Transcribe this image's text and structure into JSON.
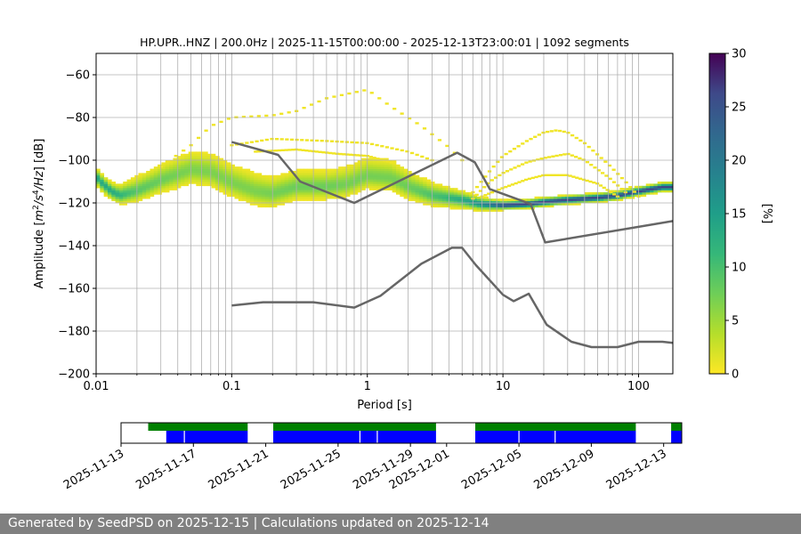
{
  "chart_data": [
    {
      "type": "heatmap",
      "title": "HP.UPR..HNZ | 200.0Hz | 2025-11-15T00:00:00 - 2025-12-13T23:00:01 | 1092 segments",
      "xlabel": "Period [s]",
      "ylabel": "Amplitude [m^2/s^4/Hz] [dB]",
      "x_scale": "log",
      "xlim": [
        0.01,
        179
      ],
      "ylim": [
        -200,
        -50
      ],
      "x_ticks": [
        "0.01",
        "0.1",
        "1",
        "10",
        "100"
      ],
      "y_ticks": [
        "−200",
        "−180",
        "−160",
        "−140",
        "−120",
        "−100",
        "−80",
        "−60"
      ],
      "grid": true,
      "colorbar": {
        "label": "[%]",
        "range": [
          0,
          30
        ],
        "ticks": [
          "0",
          "5",
          "10",
          "15",
          "20",
          "25",
          "30"
        ],
        "colormap": "viridis_r"
      },
      "mode_band": {
        "period": [
          0.01,
          0.011,
          0.013,
          0.015,
          0.02,
          0.03,
          0.05,
          0.07,
          0.1,
          0.15,
          0.2,
          0.3,
          0.5,
          0.7,
          1.0,
          1.5,
          2.0,
          3.0,
          5.0,
          7.0,
          10,
          15,
          20,
          30,
          50,
          70,
          100,
          150,
          179
        ],
        "mode_db": [
          -108,
          -111,
          -115,
          -117,
          -115,
          -110,
          -105,
          -106,
          -111,
          -115,
          -116,
          -113,
          -113,
          -112,
          -108,
          -109,
          -113,
          -117,
          -119,
          -121,
          -121.5,
          -121,
          -120,
          -119,
          -118,
          -117,
          -115,
          -113,
          -113
        ],
        "spread_upper_db": [
          4,
          4,
          4,
          5,
          7,
          8,
          9,
          9,
          9,
          9,
          8,
          8,
          8,
          9,
          9,
          9,
          8,
          6,
          4,
          3,
          2,
          2,
          2,
          2,
          2,
          2,
          2,
          2,
          2
        ],
        "spread_lower_db": [
          4,
          4,
          4,
          4,
          5,
          6,
          7,
          7,
          7,
          7,
          7,
          6,
          6,
          6,
          6,
          6,
          6,
          5,
          4,
          3,
          2,
          2,
          2,
          2,
          2,
          2,
          2,
          2,
          2
        ]
      },
      "upper_excursions": [
        {
          "period": [
            0.03,
            0.05,
            0.07,
            0.1,
            0.2,
            0.3,
            0.5,
            1.0,
            1.5,
            2.5,
            4.0,
            5.0
          ],
          "db": [
            -103,
            -93,
            -84,
            -80,
            -79,
            -77,
            -71,
            -67,
            -75,
            -84,
            -94,
            -100
          ]
        },
        {
          "period": [
            0.1,
            0.2,
            0.5,
            1.0,
            2.0,
            3.0
          ],
          "db": [
            -93,
            -90,
            -91,
            -92,
            -96,
            -100
          ]
        },
        {
          "period": [
            0.15,
            0.3,
            0.6,
            1.0,
            1.5
          ],
          "db": [
            -96,
            -95,
            -97,
            -98,
            -101
          ]
        },
        {
          "period": [
            6,
            8,
            10,
            15,
            20,
            25,
            30,
            40,
            60,
            80,
            100
          ],
          "db": [
            -115,
            -105,
            -98,
            -91,
            -87,
            -86,
            -87,
            -92,
            -102,
            -110,
            -117
          ]
        },
        {
          "period": [
            6,
            8,
            10,
            15,
            20,
            30,
            40,
            60,
            80
          ],
          "db": [
            -118,
            -110,
            -106,
            -101,
            -99,
            -97,
            -100,
            -108,
            -115
          ]
        },
        {
          "period": [
            7,
            10,
            15,
            20,
            30,
            50,
            70
          ],
          "db": [
            -117,
            -113,
            -109,
            -107,
            -107,
            -111,
            -117
          ]
        }
      ],
      "series": [
        {
          "period": [
            0.1,
            0.22,
            0.32,
            0.8,
            4.6,
            6.2,
            8.0,
            16,
            20.5,
            179
          ],
          "db": [
            -91.5,
            -97.5,
            -110,
            -120,
            -96.5,
            -101,
            -113.5,
            -120.5,
            -138.5,
            -128.5
          ]
        },
        {
          "period": [
            0.1,
            0.17,
            0.4,
            0.8,
            1.25,
            2.5,
            4.2,
            5.0,
            6.3,
            10,
            12,
            15.5,
            21,
            32,
            45,
            70,
            100,
            150,
            179
          ],
          "db": [
            -168,
            -166.5,
            -166.5,
            -169,
            -163.5,
            -148.5,
            -141,
            -141,
            -149,
            -163,
            -166,
            -162.5,
            -177,
            -185,
            -187.5,
            -187.5,
            -185,
            -185,
            -185.5
          ]
        }
      ],
      "series_color": "#666666"
    },
    {
      "type": "timeline",
      "x_ticks": [
        "2025-11-13",
        "2025-11-17",
        "2025-11-21",
        "2025-11-25",
        "2025-11-29",
        "2025-12-01",
        "2025-12-05",
        "2025-12-09",
        "2025-12-13"
      ],
      "xlim": [
        "2025-11-13",
        "2025-12-14"
      ],
      "top_bars": [
        {
          "start": "2025-11-14T12:00",
          "end": "2025-11-20T00:00"
        },
        {
          "start": "2025-11-21T10:00",
          "end": "2025-11-30T10:00"
        },
        {
          "start": "2025-12-02T14:00",
          "end": "2025-12-11T11:00"
        },
        {
          "start": "2025-12-13T10:00",
          "end": "2025-12-14T10:00"
        }
      ],
      "bottom_bars": [
        {
          "start": "2025-11-15T12:00",
          "end": "2025-11-20T00:00"
        },
        {
          "start": "2025-11-21T10:00",
          "end": "2025-11-30T10:00"
        },
        {
          "start": "2025-12-02T14:00",
          "end": "2025-12-11T11:00"
        },
        {
          "start": "2025-12-13T10:00",
          "end": "2025-12-14T10:00"
        }
      ],
      "gaps": [
        "2025-11-16T12:00",
        "2025-11-26T05:00",
        "2025-11-27T04:00",
        "2025-12-05T00:00",
        "2025-12-07T00:00"
      ],
      "top_color": "#008000",
      "bottom_color": "#0000ff"
    }
  ],
  "footer": {
    "text": "Generated by SeedPSD on 2025-12-15 | Calculations updated on 2025-12-14"
  }
}
